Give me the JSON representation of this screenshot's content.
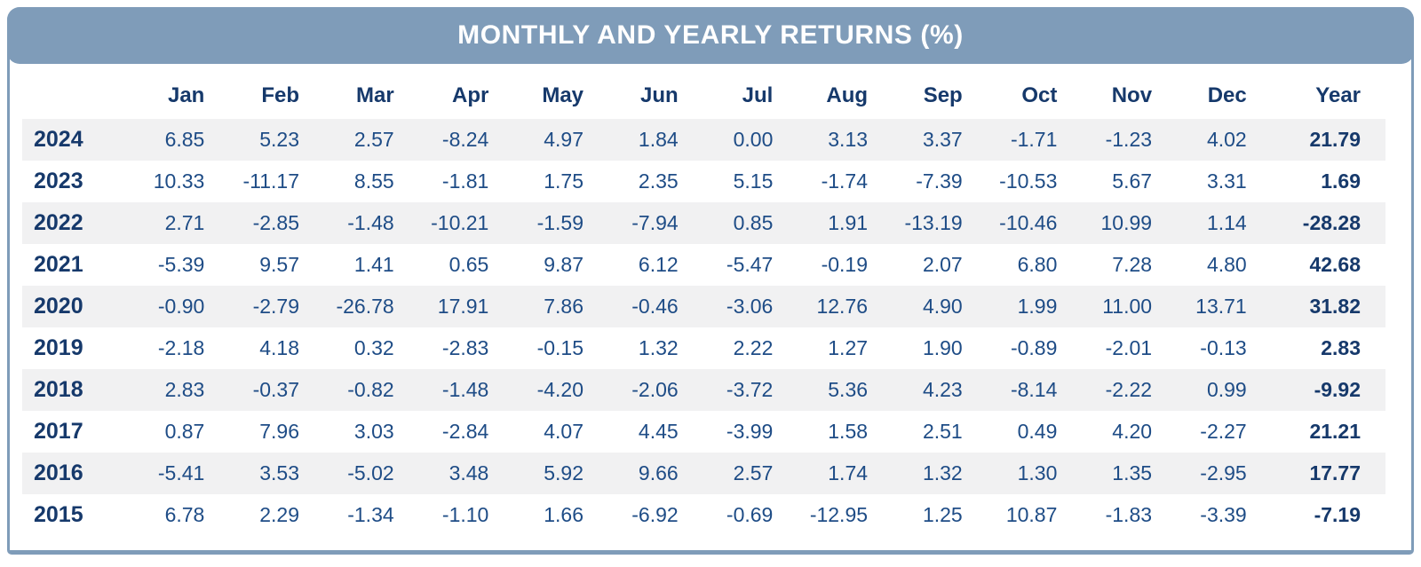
{
  "colors": {
    "header_bar": "#7F9CB9",
    "border": "#7F9CB9",
    "stripe": "#F1F1F2",
    "heading_text": "#16396B",
    "value_text": "#1E4C86",
    "title_text": "#FFFFFF"
  },
  "chart_data": {
    "type": "table",
    "title": "MONTHLY AND YEARLY RETURNS (%)",
    "columns": [
      "Jan",
      "Feb",
      "Mar",
      "Apr",
      "May",
      "Jun",
      "Jul",
      "Aug",
      "Sep",
      "Oct",
      "Nov",
      "Dec",
      "Year"
    ],
    "rows": [
      {
        "label": "2024",
        "values": [
          "6.85",
          "5.23",
          "2.57",
          "-8.24",
          "4.97",
          "1.84",
          "0.00",
          "3.13",
          "3.37",
          "-1.71",
          "-1.23",
          "4.02",
          "21.79"
        ]
      },
      {
        "label": "2023",
        "values": [
          "10.33",
          "-11.17",
          "8.55",
          "-1.81",
          "1.75",
          "2.35",
          "5.15",
          "-1.74",
          "-7.39",
          "-10.53",
          "5.67",
          "3.31",
          "1.69"
        ]
      },
      {
        "label": "2022",
        "values": [
          "2.71",
          "-2.85",
          "-1.48",
          "-10.21",
          "-1.59",
          "-7.94",
          "0.85",
          "1.91",
          "-13.19",
          "-10.46",
          "10.99",
          "1.14",
          "-28.28"
        ]
      },
      {
        "label": "2021",
        "values": [
          "-5.39",
          "9.57",
          "1.41",
          "0.65",
          "9.87",
          "6.12",
          "-5.47",
          "-0.19",
          "2.07",
          "6.80",
          "7.28",
          "4.80",
          "42.68"
        ]
      },
      {
        "label": "2020",
        "values": [
          "-0.90",
          "-2.79",
          "-26.78",
          "17.91",
          "7.86",
          "-0.46",
          "-3.06",
          "12.76",
          "4.90",
          "1.99",
          "11.00",
          "13.71",
          "31.82"
        ]
      },
      {
        "label": "2019",
        "values": [
          "-2.18",
          "4.18",
          "0.32",
          "-2.83",
          "-0.15",
          "1.32",
          "2.22",
          "1.27",
          "1.90",
          "-0.89",
          "-2.01",
          "-0.13",
          "2.83"
        ]
      },
      {
        "label": "2018",
        "values": [
          "2.83",
          "-0.37",
          "-0.82",
          "-1.48",
          "-4.20",
          "-2.06",
          "-3.72",
          "5.36",
          "4.23",
          "-8.14",
          "-2.22",
          "0.99",
          "-9.92"
        ]
      },
      {
        "label": "2017",
        "values": [
          "0.87",
          "7.96",
          "3.03",
          "-2.84",
          "4.07",
          "4.45",
          "-3.99",
          "1.58",
          "2.51",
          "0.49",
          "4.20",
          "-2.27",
          "21.21"
        ]
      },
      {
        "label": "2016",
        "values": [
          "-5.41",
          "3.53",
          "-5.02",
          "3.48",
          "5.92",
          "9.66",
          "2.57",
          "1.74",
          "1.32",
          "1.30",
          "1.35",
          "-2.95",
          "17.77"
        ]
      },
      {
        "label": "2015",
        "values": [
          "6.78",
          "2.29",
          "-1.34",
          "-1.10",
          "1.66",
          "-6.92",
          "-0.69",
          "-12.95",
          "1.25",
          "10.87",
          "-1.83",
          "-3.39",
          "-7.19"
        ]
      }
    ]
  }
}
